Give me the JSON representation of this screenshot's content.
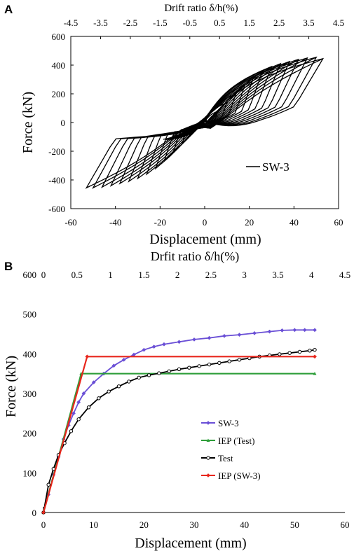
{
  "chart_data": [
    {
      "panel": "A",
      "type": "line",
      "title": "",
      "xlabel": "Displacement (mm)",
      "ylabel": "Force (kN)",
      "x2label": "Drift ratio δ/h(%)",
      "xlim": [
        -60,
        60
      ],
      "ylim": [
        -600,
        600
      ],
      "x2lim": [
        -4.5,
        4.5
      ],
      "xticks": [
        -60,
        -40,
        -20,
        0,
        20,
        40,
        60
      ],
      "yticks": [
        -600,
        -400,
        -200,
        0,
        200,
        400,
        600
      ],
      "x2ticks": [
        -4.5,
        -3.5,
        -2.5,
        -1.5,
        -0.5,
        0.5,
        1.5,
        2.5,
        3.5,
        4.5
      ],
      "grid": false,
      "legend_position": "right",
      "series": [
        {
          "name": "SW-3",
          "color": "#000000",
          "description_kind": "hysteresis",
          "cycles": [
            {
              "xmax": 6,
              "fmax": 80,
              "xmin": -6,
              "fmin": -80
            },
            {
              "xmax": 10,
              "fmax": 140,
              "xmin": -10,
              "fmin": -140
            },
            {
              "xmax": 14,
              "fmax": 200,
              "xmin": -14,
              "fmin": -200
            },
            {
              "xmax": 18,
              "fmax": 260,
              "xmin": -18,
              "fmin": -260
            },
            {
              "xmax": 22,
              "fmax": 320,
              "xmin": -22,
              "fmin": -320
            },
            {
              "xmax": 26,
              "fmax": 360,
              "xmin": -26,
              "fmin": -360
            },
            {
              "xmax": 30,
              "fmax": 390,
              "xmin": -30,
              "fmin": -390
            },
            {
              "xmax": 34,
              "fmax": 410,
              "xmin": -34,
              "fmin": -410
            },
            {
              "xmax": 38,
              "fmax": 425,
              "xmin": -38,
              "fmin": -425
            },
            {
              "xmax": 42,
              "fmax": 440,
              "xmin": -42,
              "fmin": -440
            },
            {
              "xmax": 46,
              "fmax": 450,
              "xmin": -46,
              "fmin": -450
            },
            {
              "xmax": 50,
              "fmax": 455,
              "xmin": -50,
              "fmin": -455
            },
            {
              "xmax": 53,
              "fmax": 445,
              "xmin": -53,
              "fmin": -455
            }
          ]
        }
      ]
    },
    {
      "panel": "B",
      "type": "line",
      "title": "",
      "xlabel": "Displacement (mm)",
      "ylabel": "Force (kN)",
      "x2label": "Drfit ratio δ/h(%)",
      "xlim": [
        0,
        60
      ],
      "ylim": [
        0,
        600
      ],
      "x2lim": [
        0,
        4.5
      ],
      "xticks": [
        0,
        10,
        20,
        30,
        40,
        50,
        60
      ],
      "yticks": [
        0,
        100,
        200,
        300,
        400,
        500,
        600
      ],
      "x2ticks": [
        0,
        0.5,
        1,
        1.5,
        2,
        2.5,
        3,
        3.5,
        4,
        4.5
      ],
      "grid": false,
      "legend_position": "center-right",
      "series": [
        {
          "name": "SW-3",
          "color": "#6a4fd6",
          "marker": "diamond",
          "x": [
            0,
            1,
            2,
            3,
            4,
            5,
            6,
            7,
            8,
            10,
            12,
            14,
            16,
            18,
            20,
            22,
            24,
            27,
            30,
            33,
            36,
            39,
            42,
            45,
            47.5,
            50,
            52,
            54
          ],
          "y": [
            0,
            45,
            95,
            140,
            185,
            220,
            250,
            278,
            300,
            328,
            350,
            370,
            385,
            398,
            410,
            418,
            424,
            430,
            436,
            440,
            445,
            448,
            452,
            456,
            459,
            460,
            460,
            460
          ]
        },
        {
          "name": "IEP (Test)",
          "color": "#2e9e3a",
          "marker": "triangle",
          "x": [
            0,
            7.5,
            54
          ],
          "y": [
            0,
            350,
            350
          ]
        },
        {
          "name": "Test",
          "color": "#000000",
          "marker": "circle",
          "x": [
            0,
            1,
            2,
            3,
            4.2,
            5.5,
            7,
            9,
            11,
            13,
            15,
            17,
            19,
            21,
            23,
            25,
            27,
            29,
            31,
            33,
            35,
            37,
            39,
            41,
            43,
            45,
            47,
            49,
            51,
            53,
            54
          ],
          "y": [
            0,
            70,
            110,
            145,
            175,
            205,
            235,
            265,
            288,
            305,
            318,
            330,
            340,
            346,
            351,
            356,
            361,
            365,
            369,
            373,
            377,
            381,
            385,
            389,
            393,
            396,
            399,
            402,
            405,
            408,
            410
          ]
        },
        {
          "name": "IEP (SW-3)",
          "color": "#e8261c",
          "marker": "diamond",
          "x": [
            0,
            8.7,
            54
          ],
          "y": [
            0,
            393,
            393
          ]
        }
      ]
    }
  ]
}
